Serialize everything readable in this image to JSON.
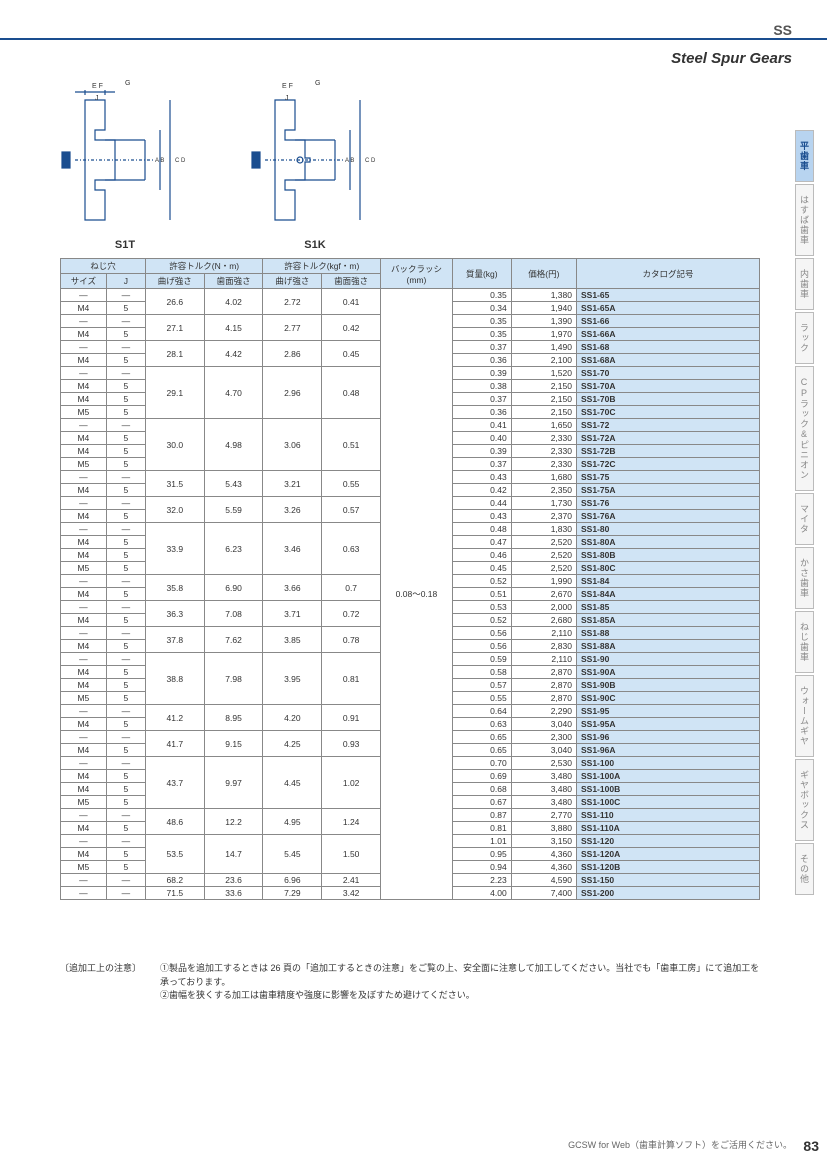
{
  "header": {
    "category": "SS",
    "subtitle": "Steel Spur Gears"
  },
  "sidebar": [
    {
      "label": "平歯車",
      "active": true
    },
    {
      "label": "はすば歯車",
      "active": false
    },
    {
      "label": "内歯車",
      "active": false
    },
    {
      "label": "ラック",
      "active": false
    },
    {
      "label": "CPラック&ピニオン",
      "active": false
    },
    {
      "label": "マイタ",
      "active": false
    },
    {
      "label": "かさ歯車",
      "active": false
    },
    {
      "label": "ねじ歯車",
      "active": false
    },
    {
      "label": "ウォームギヤ",
      "active": false
    },
    {
      "label": "ギヤボックス",
      "active": false
    },
    {
      "label": "その他",
      "active": false
    }
  ],
  "diagrams": [
    {
      "label": "S1T"
    },
    {
      "label": "S1K"
    }
  ],
  "table": {
    "headers": {
      "neji": "ねじ穴",
      "size": "サイズ",
      "j": "J",
      "nm": "許容トルク(N・m)",
      "kgfm": "許容トルク(kgf・m)",
      "bend": "曲げ強さ",
      "surf": "歯面強さ",
      "backlash": "バックラッシ(mm)",
      "mass": "質量(kg)",
      "price": "価格(円)",
      "catalog": "カタログ記号"
    },
    "backlash": "0.08〜0.18",
    "groups": [
      {
        "size": [
          "—",
          "M4"
        ],
        "j": [
          "—",
          "5"
        ],
        "nm": [
          "26.6",
          "4.02"
        ],
        "kgf": [
          "2.72",
          "0.41"
        ],
        "rows": [
          {
            "m": "0.35",
            "p": "1,380",
            "c": "SS1-65"
          },
          {
            "m": "0.34",
            "p": "1,940",
            "c": "SS1-65A"
          }
        ]
      },
      {
        "size": [
          "—",
          "M4"
        ],
        "j": [
          "—",
          "5"
        ],
        "nm": [
          "27.1",
          "4.15"
        ],
        "kgf": [
          "2.77",
          "0.42"
        ],
        "rows": [
          {
            "m": "0.35",
            "p": "1,390",
            "c": "SS1-66"
          },
          {
            "m": "0.35",
            "p": "1,970",
            "c": "SS1-66A"
          }
        ]
      },
      {
        "size": [
          "—",
          "M4"
        ],
        "j": [
          "—",
          "5"
        ],
        "nm": [
          "28.1",
          "4.42"
        ],
        "kgf": [
          "2.86",
          "0.45"
        ],
        "rows": [
          {
            "m": "0.37",
            "p": "1,490",
            "c": "SS1-68"
          },
          {
            "m": "0.36",
            "p": "2,100",
            "c": "SS1-68A"
          }
        ]
      },
      {
        "size": [
          "—",
          "M4",
          "M4",
          "M5"
        ],
        "j": [
          "—",
          "5",
          "5",
          "5"
        ],
        "nm": [
          "29.1",
          "4.70"
        ],
        "kgf": [
          "2.96",
          "0.48"
        ],
        "rows": [
          {
            "m": "0.39",
            "p": "1,520",
            "c": "SS1-70"
          },
          {
            "m": "0.38",
            "p": "2,150",
            "c": "SS1-70A"
          },
          {
            "m": "0.37",
            "p": "2,150",
            "c": "SS1-70B"
          },
          {
            "m": "0.36",
            "p": "2,150",
            "c": "SS1-70C"
          }
        ]
      },
      {
        "size": [
          "—",
          "M4",
          "M4",
          "M5"
        ],
        "j": [
          "—",
          "5",
          "5",
          "5"
        ],
        "nm": [
          "30.0",
          "4.98"
        ],
        "kgf": [
          "3.06",
          "0.51"
        ],
        "rows": [
          {
            "m": "0.41",
            "p": "1,650",
            "c": "SS1-72"
          },
          {
            "m": "0.40",
            "p": "2,330",
            "c": "SS1-72A"
          },
          {
            "m": "0.39",
            "p": "2,330",
            "c": "SS1-72B"
          },
          {
            "m": "0.37",
            "p": "2,330",
            "c": "SS1-72C"
          }
        ]
      },
      {
        "size": [
          "—",
          "M4"
        ],
        "j": [
          "—",
          "5"
        ],
        "nm": [
          "31.5",
          "5.43"
        ],
        "kgf": [
          "3.21",
          "0.55"
        ],
        "rows": [
          {
            "m": "0.43",
            "p": "1,680",
            "c": "SS1-75"
          },
          {
            "m": "0.42",
            "p": "2,350",
            "c": "SS1-75A"
          }
        ]
      },
      {
        "size": [
          "—",
          "M4"
        ],
        "j": [
          "—",
          "5"
        ],
        "nm": [
          "32.0",
          "5.59"
        ],
        "kgf": [
          "3.26",
          "0.57"
        ],
        "rows": [
          {
            "m": "0.44",
            "p": "1,730",
            "c": "SS1-76"
          },
          {
            "m": "0.43",
            "p": "2,370",
            "c": "SS1-76A"
          }
        ]
      },
      {
        "size": [
          "—",
          "M4",
          "M4",
          "M5"
        ],
        "j": [
          "—",
          "5",
          "5",
          "5"
        ],
        "nm": [
          "33.9",
          "6.23"
        ],
        "kgf": [
          "3.46",
          "0.63"
        ],
        "rows": [
          {
            "m": "0.48",
            "p": "1,830",
            "c": "SS1-80"
          },
          {
            "m": "0.47",
            "p": "2,520",
            "c": "SS1-80A"
          },
          {
            "m": "0.46",
            "p": "2,520",
            "c": "SS1-80B"
          },
          {
            "m": "0.45",
            "p": "2,520",
            "c": "SS1-80C"
          }
        ]
      },
      {
        "size": [
          "—",
          "M4"
        ],
        "j": [
          "—",
          "5"
        ],
        "nm": [
          "35.8",
          "6.90"
        ],
        "kgf": [
          "3.66",
          "0.7"
        ],
        "rows": [
          {
            "m": "0.52",
            "p": "1,990",
            "c": "SS1-84"
          },
          {
            "m": "0.51",
            "p": "2,670",
            "c": "SS1-84A"
          }
        ]
      },
      {
        "size": [
          "—",
          "M4"
        ],
        "j": [
          "—",
          "5"
        ],
        "nm": [
          "36.3",
          "7.08"
        ],
        "kgf": [
          "3.71",
          "0.72"
        ],
        "rows": [
          {
            "m": "0.53",
            "p": "2,000",
            "c": "SS1-85"
          },
          {
            "m": "0.52",
            "p": "2,680",
            "c": "SS1-85A"
          }
        ]
      },
      {
        "size": [
          "—",
          "M4"
        ],
        "j": [
          "—",
          "5"
        ],
        "nm": [
          "37.8",
          "7.62"
        ],
        "kgf": [
          "3.85",
          "0.78"
        ],
        "rows": [
          {
            "m": "0.56",
            "p": "2,110",
            "c": "SS1-88"
          },
          {
            "m": "0.56",
            "p": "2,830",
            "c": "SS1-88A"
          }
        ]
      },
      {
        "size": [
          "—",
          "M4",
          "M4",
          "M5"
        ],
        "j": [
          "—",
          "5",
          "5",
          "5"
        ],
        "nm": [
          "38.8",
          "7.98"
        ],
        "kgf": [
          "3.95",
          "0.81"
        ],
        "rows": [
          {
            "m": "0.59",
            "p": "2,110",
            "c": "SS1-90"
          },
          {
            "m": "0.58",
            "p": "2,870",
            "c": "SS1-90A"
          },
          {
            "m": "0.57",
            "p": "2,870",
            "c": "SS1-90B"
          },
          {
            "m": "0.55",
            "p": "2,870",
            "c": "SS1-90C"
          }
        ]
      },
      {
        "size": [
          "—",
          "M4"
        ],
        "j": [
          "—",
          "5"
        ],
        "nm": [
          "41.2",
          "8.95"
        ],
        "kgf": [
          "4.20",
          "0.91"
        ],
        "rows": [
          {
            "m": "0.64",
            "p": "2,290",
            "c": "SS1-95"
          },
          {
            "m": "0.63",
            "p": "3,040",
            "c": "SS1-95A"
          }
        ]
      },
      {
        "size": [
          "—",
          "M4"
        ],
        "j": [
          "—",
          "5"
        ],
        "nm": [
          "41.7",
          "9.15"
        ],
        "kgf": [
          "4.25",
          "0.93"
        ],
        "rows": [
          {
            "m": "0.65",
            "p": "2,300",
            "c": "SS1-96"
          },
          {
            "m": "0.65",
            "p": "3,040",
            "c": "SS1-96A"
          }
        ]
      },
      {
        "size": [
          "—",
          "M4",
          "M4",
          "M5"
        ],
        "j": [
          "—",
          "5",
          "5",
          "5"
        ],
        "nm": [
          "43.7",
          "9.97"
        ],
        "kgf": [
          "4.45",
          "1.02"
        ],
        "rows": [
          {
            "m": "0.70",
            "p": "2,530",
            "c": "SS1-100"
          },
          {
            "m": "0.69",
            "p": "3,480",
            "c": "SS1-100A"
          },
          {
            "m": "0.68",
            "p": "3,480",
            "c": "SS1-100B"
          },
          {
            "m": "0.67",
            "p": "3,480",
            "c": "SS1-100C"
          }
        ]
      },
      {
        "size": [
          "—",
          "M4"
        ],
        "j": [
          "—",
          "5"
        ],
        "nm": [
          "48.6",
          "12.2"
        ],
        "kgf": [
          "4.95",
          "1.24"
        ],
        "rows": [
          {
            "m": "0.87",
            "p": "2,770",
            "c": "SS1-110"
          },
          {
            "m": "0.81",
            "p": "3,880",
            "c": "SS1-110A"
          }
        ]
      },
      {
        "size": [
          "—",
          "M4",
          "M5"
        ],
        "j": [
          "—",
          "5",
          "5"
        ],
        "nm": [
          "53.5",
          "14.7"
        ],
        "kgf": [
          "5.45",
          "1.50"
        ],
        "rows": [
          {
            "m": "1.01",
            "p": "3,150",
            "c": "SS1-120"
          },
          {
            "m": "0.95",
            "p": "4,360",
            "c": "SS1-120A"
          },
          {
            "m": "0.94",
            "p": "4,360",
            "c": "SS1-120B"
          }
        ]
      },
      {
        "size": [
          "—"
        ],
        "j": [
          "—"
        ],
        "nm": [
          "68.2",
          "23.6"
        ],
        "kgf": [
          "6.96",
          "2.41"
        ],
        "rows": [
          {
            "m": "2.23",
            "p": "4,590",
            "c": "SS1-150"
          }
        ]
      },
      {
        "size": [
          "—"
        ],
        "j": [
          "—"
        ],
        "nm": [
          "71.5",
          "33.6"
        ],
        "kgf": [
          "7.29",
          "3.42"
        ],
        "rows": [
          {
            "m": "4.00",
            "p": "7,400",
            "c": "SS1-200"
          }
        ]
      }
    ]
  },
  "notes": {
    "label": "〔追加工上の注意〕",
    "lines": [
      "①製品を追加工するときは 26 頁の「追加工するときの注意」をご覧の上、安全面に注意して加工してください。当社でも「歯車工房」にて追加工を承っております。",
      "②歯幅を狭くする加工は歯車精度や強度に影響を及ぼすため避けてください。"
    ]
  },
  "footer": "GCSW for Web（歯車計算ソフト）をご活用ください。",
  "page": "83"
}
